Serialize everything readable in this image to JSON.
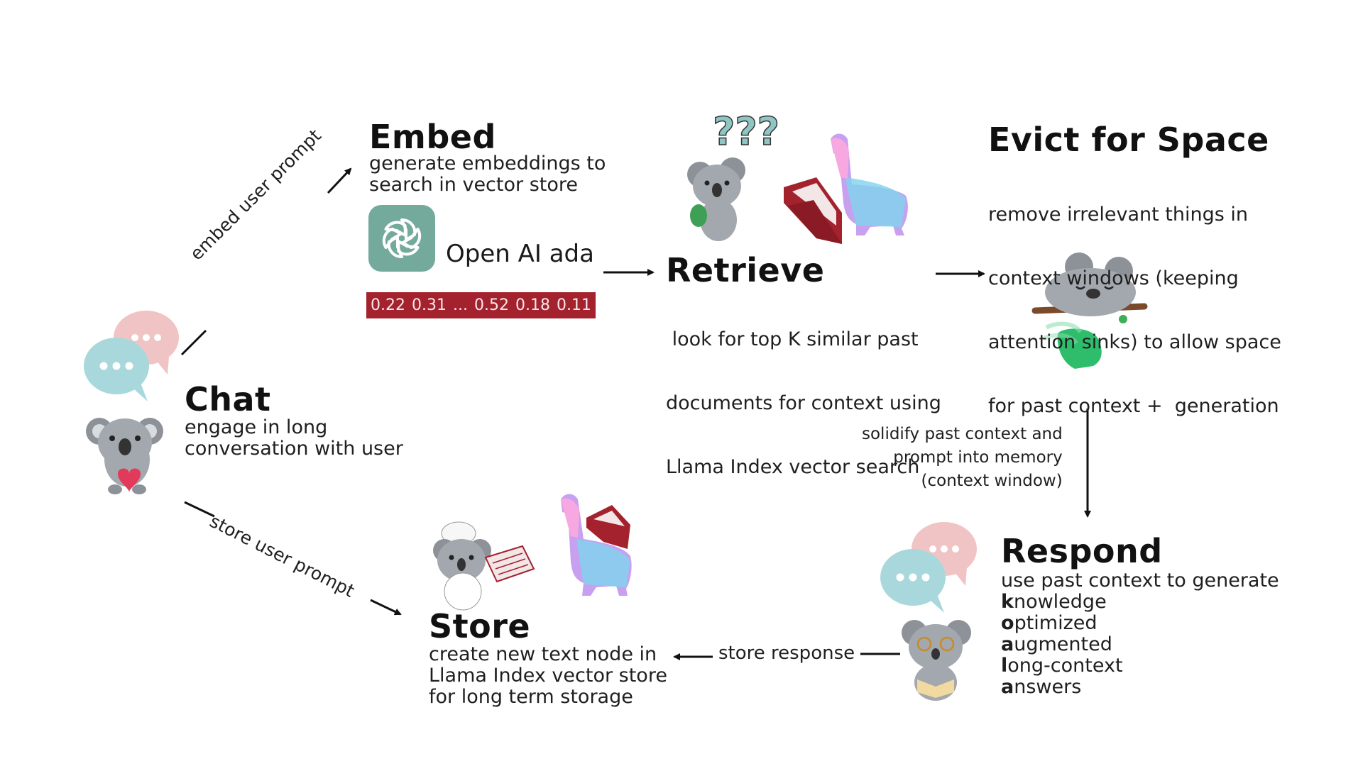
{
  "chat": {
    "title": "Chat",
    "desc": [
      "engage in long",
      "conversation with user"
    ],
    "bubble_dots": "•••"
  },
  "embed": {
    "title": "Embed",
    "desc": [
      "generate embeddings to",
      "search in vector store"
    ],
    "model_name": "Open AI ada",
    "vector_values": [
      "0.22",
      "0.31",
      "...",
      "0.52",
      "0.18",
      "0.11"
    ]
  },
  "retrieve": {
    "title": "Retrieve",
    "desc": [
      " look for top K similar past",
      "documents for context using",
      "Llama Index vector search"
    ],
    "question_marks": "???"
  },
  "evict": {
    "title": "Evict for Space",
    "desc": [
      "remove irrelevant things in",
      "context windows (keeping",
      "attention sinks) to allow space",
      "for past context +  generation"
    ]
  },
  "respond": {
    "title": "Respond",
    "intro": "use past context to generate",
    "acronym": [
      {
        "letter": "k",
        "rest": "nowledge"
      },
      {
        "letter": "o",
        "rest": "ptimized"
      },
      {
        "letter": "a",
        "rest": "ugmented"
      },
      {
        "letter": "l",
        "rest": "ong-context"
      },
      {
        "letter": "a",
        "rest": "nswers"
      }
    ],
    "bubble_dots": "•••"
  },
  "store": {
    "title": "Store",
    "desc": [
      "create new text node in",
      "Llama Index vector store",
      "for long term storage"
    ]
  },
  "edges": {
    "embed_user_prompt": "embed user prompt",
    "store_user_prompt": "store user prompt",
    "store_response": "store response",
    "solidify": [
      "solidify past context  and",
      "prompt into memory",
      "(context window)"
    ]
  },
  "colors": {
    "bubble_pink": "#f0c4c4",
    "bubble_teal": "#a8d8dc",
    "koala_gray": "#a3a8ae",
    "folder_red": "#a3222e",
    "llama_pink": "#f7a8e0",
    "llama_cyan": "#7fd3ee",
    "openai_green": "#74aa9c",
    "leaf_green": "#2ebd6b"
  }
}
